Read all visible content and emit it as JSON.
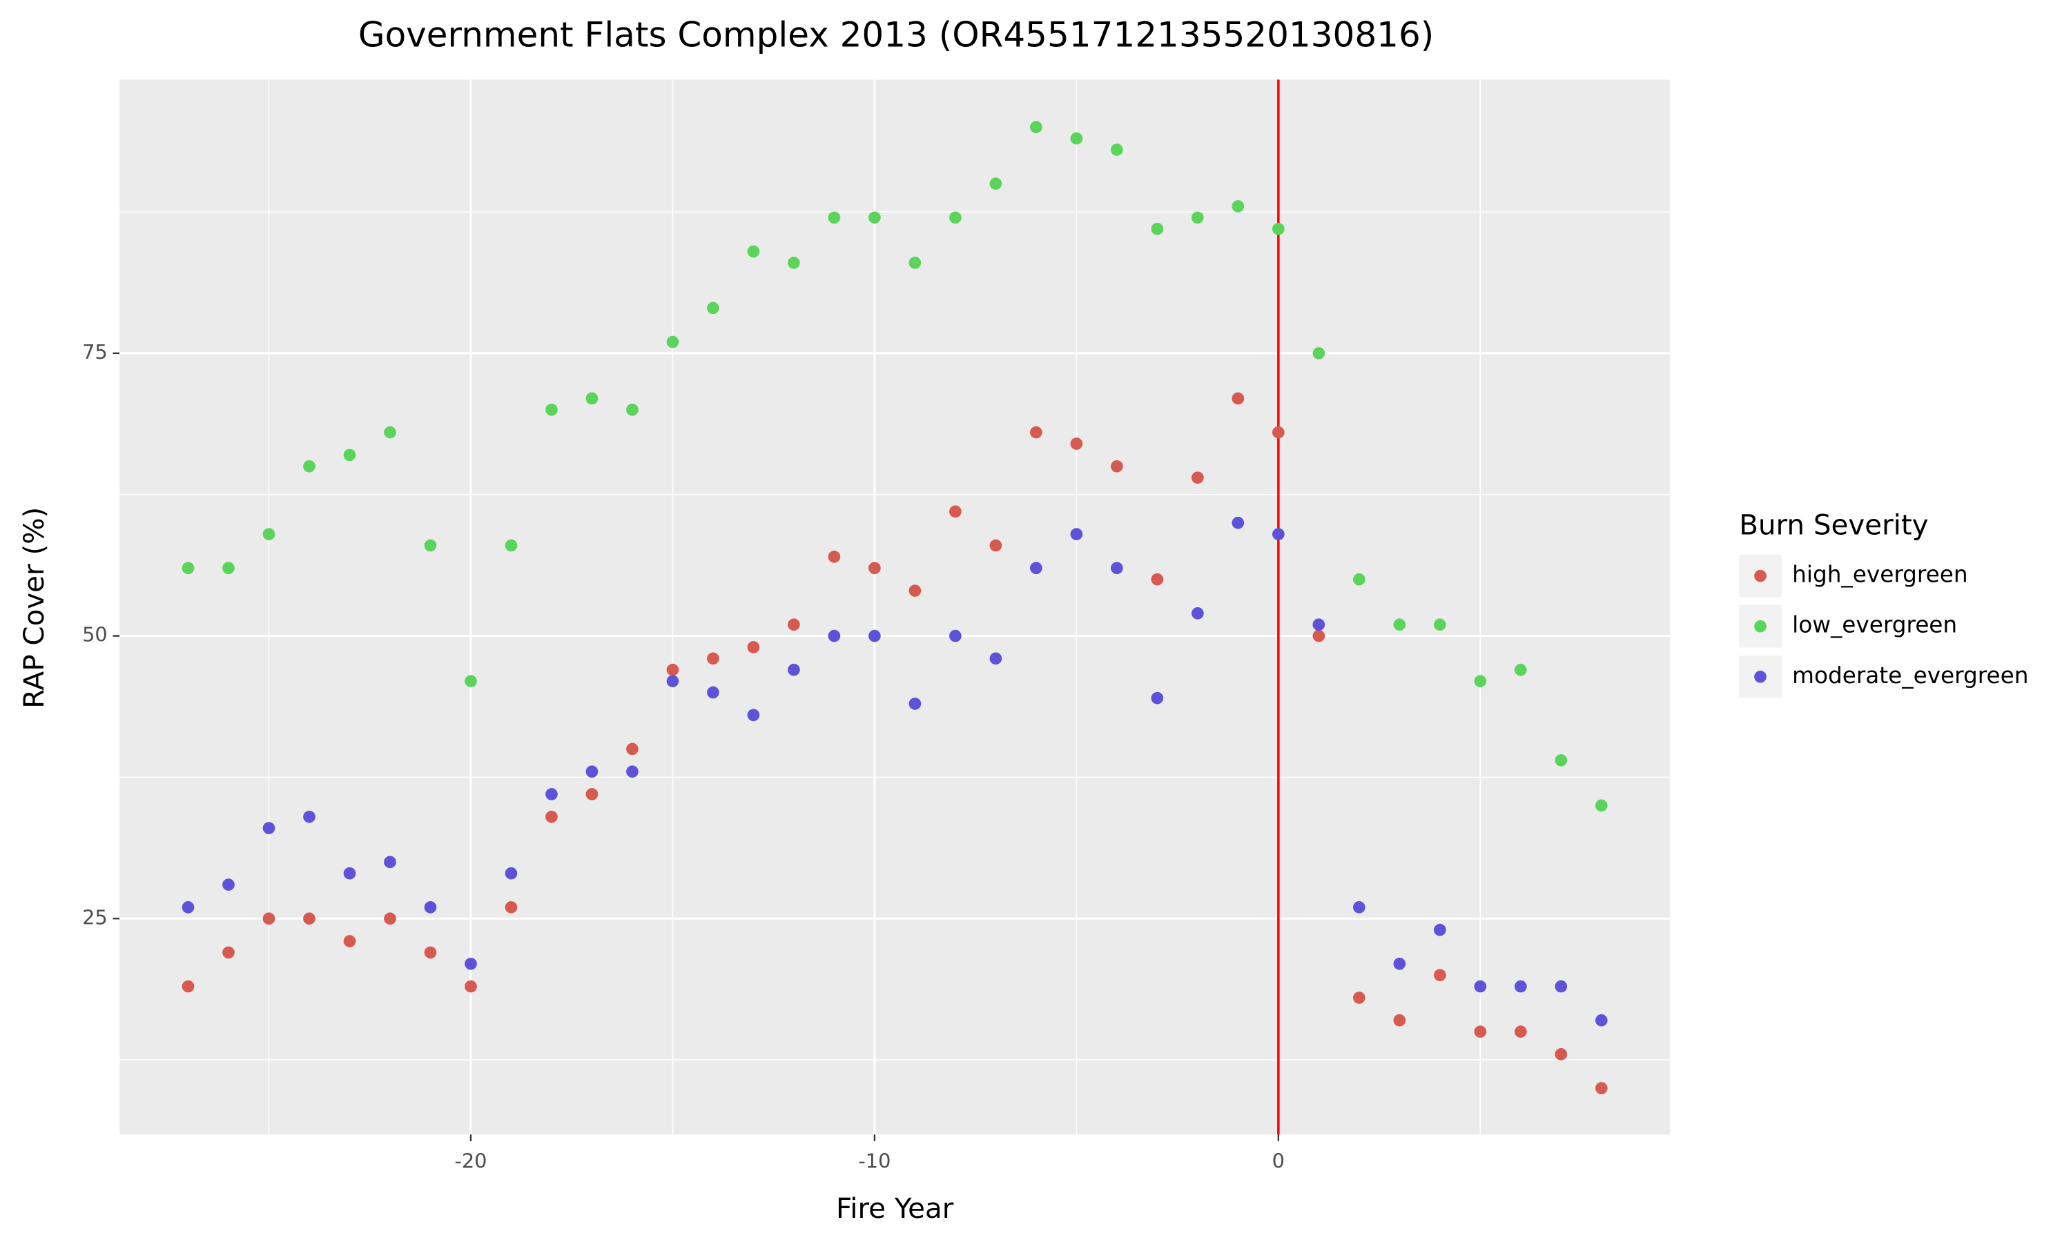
{
  "chart_data": {
    "type": "scatter",
    "title": "Government Flats Complex 2013 (OR4551712135520130816)",
    "x_label": "Fire Year",
    "y_label": "RAP Cover (%)",
    "legend_title": "Burn Severity",
    "legend_position": "right",
    "x": [
      -27,
      -26,
      -25,
      -24,
      -23,
      -22,
      -21,
      -20,
      -19,
      -18,
      -17,
      -16,
      -15,
      -14,
      -13,
      -12,
      -11,
      -10,
      -9,
      -8,
      -7,
      -6,
      -5,
      -4,
      -3,
      -2,
      -1,
      0,
      1,
      2,
      3,
      4,
      5,
      6,
      7,
      8
    ],
    "series": [
      {
        "name": "high_evergreen",
        "color": "#d65a50",
        "values": [
          19,
          22,
          25,
          25,
          23,
          25,
          22,
          19,
          26,
          34,
          36,
          40,
          47,
          48,
          49,
          51,
          57,
          56,
          54,
          61,
          58,
          68,
          67,
          65,
          55,
          64,
          71,
          68,
          50,
          18,
          16,
          20,
          15,
          15,
          13,
          10
        ]
      },
      {
        "name": "low_evergreen",
        "color": "#5bd45b",
        "values": [
          56,
          56,
          59,
          65,
          66,
          68,
          58,
          46,
          58,
          70,
          71,
          70,
          76,
          79,
          84,
          83,
          87,
          87,
          83,
          87,
          90,
          95,
          94,
          93,
          86,
          87,
          88,
          86,
          75,
          55,
          51,
          51,
          46,
          47,
          39,
          35
        ]
      },
      {
        "name": "moderate_evergreen",
        "color": "#5e52d9",
        "values": [
          26,
          28,
          33,
          34,
          29,
          30,
          26,
          21,
          29,
          36,
          38,
          38,
          46,
          45,
          43,
          47,
          50,
          50,
          44,
          50,
          48,
          56,
          59,
          56,
          44.5,
          52,
          60,
          59,
          51,
          26,
          21,
          24,
          19,
          19,
          19,
          16
        ]
      }
    ],
    "xlim": [
      -28.7,
      9.7
    ],
    "ylim": [
      5.9,
      99.2
    ],
    "xticks": [
      -20,
      -10,
      0
    ],
    "yticks": [
      25,
      50,
      75
    ],
    "minor_xticks": [
      -25,
      -15,
      -5,
      5
    ],
    "minor_yticks": [
      12.5,
      37.5,
      62.5,
      87.5
    ],
    "grid": true,
    "vline": {
      "x": 0,
      "color": "#ff0000"
    }
  }
}
